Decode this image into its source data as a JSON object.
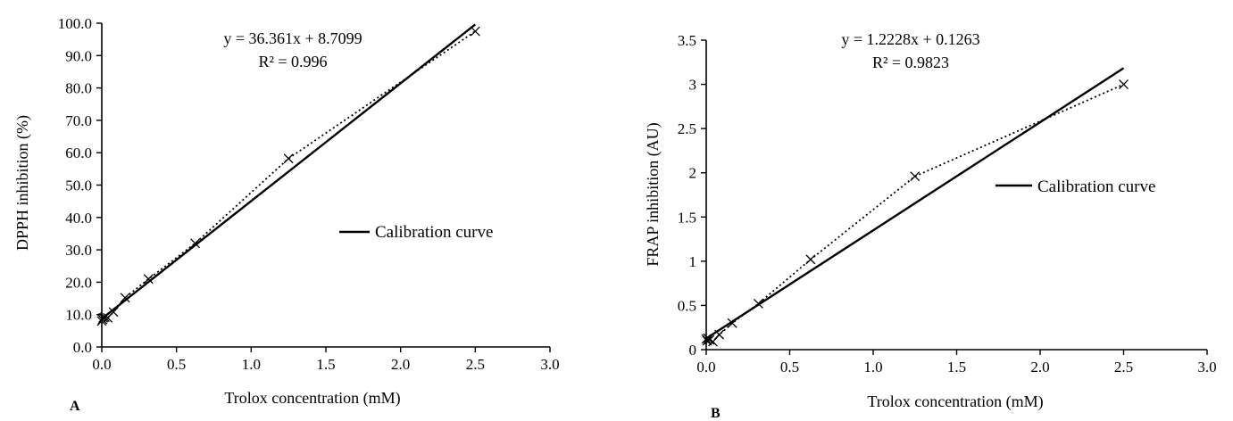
{
  "chart_data": [
    {
      "type": "scatter",
      "panel_label": "A",
      "xlabel": "Trolox concentration (mM)",
      "ylabel": "DPPH inhibition (%)",
      "xlim": [
        0,
        3
      ],
      "ylim": [
        0,
        100
      ],
      "x_ticks": [
        "0.0",
        "0.5",
        "1.0",
        "1.5",
        "2.0",
        "2.5",
        "3.0"
      ],
      "y_ticks": [
        "0.0",
        "10.0",
        "20.0",
        "30.0",
        "40.0",
        "50.0",
        "60.0",
        "70.0",
        "80.0",
        "90.0",
        "100.0"
      ],
      "grid": false,
      "equation": "y = 36.361x + 8.7099",
      "r_squared": "R² = 0.996",
      "legend": {
        "label": "Calibration curve",
        "position": "center-right"
      },
      "series": [
        {
          "style": "dotted-with-x-markers",
          "x": [
            0.0,
            0.005,
            0.01,
            0.02,
            0.04,
            0.078,
            0.156,
            0.3125,
            0.625,
            1.25,
            2.5
          ],
          "y": [
            8.0,
            8.5,
            9.0,
            9.2,
            9.0,
            10.8,
            15.2,
            21.0,
            32.0,
            58.2,
            97.5
          ]
        },
        {
          "name": "Calibration curve",
          "style": "solid-line",
          "slope": 36.361,
          "intercept": 8.7099,
          "x_range": [
            0.0,
            2.5
          ]
        }
      ]
    },
    {
      "type": "scatter",
      "panel_label": "B",
      "xlabel": "Trolox concentration (mM)",
      "ylabel": "FRAP inhibition (AU)",
      "xlim": [
        0,
        3
      ],
      "ylim": [
        0,
        3.5
      ],
      "x_ticks": [
        "0.0",
        "0.5",
        "1.0",
        "1.5",
        "2.0",
        "2.5",
        "3.0"
      ],
      "y_ticks": [
        "0",
        "0.5",
        "1",
        "1.5",
        "2",
        "2.5",
        "3",
        "3.5"
      ],
      "grid": false,
      "equation": "y = 1.2228x + 0.1263",
      "r_squared": "R² = 0.9823",
      "legend": {
        "label": "Calibration curve",
        "position": "right"
      },
      "series": [
        {
          "style": "dotted-with-x-markers",
          "x": [
            0.0,
            0.005,
            0.01,
            0.02,
            0.04,
            0.078,
            0.156,
            0.3125,
            0.625,
            1.25,
            2.5
          ],
          "y": [
            0.12,
            0.1,
            0.13,
            0.11,
            0.09,
            0.17,
            0.3,
            0.52,
            1.02,
            1.96,
            3.0
          ]
        },
        {
          "name": "Calibration curve",
          "style": "solid-line",
          "slope": 1.2228,
          "intercept": 0.1263,
          "x_range": [
            0.0,
            2.5
          ]
        }
      ]
    }
  ]
}
